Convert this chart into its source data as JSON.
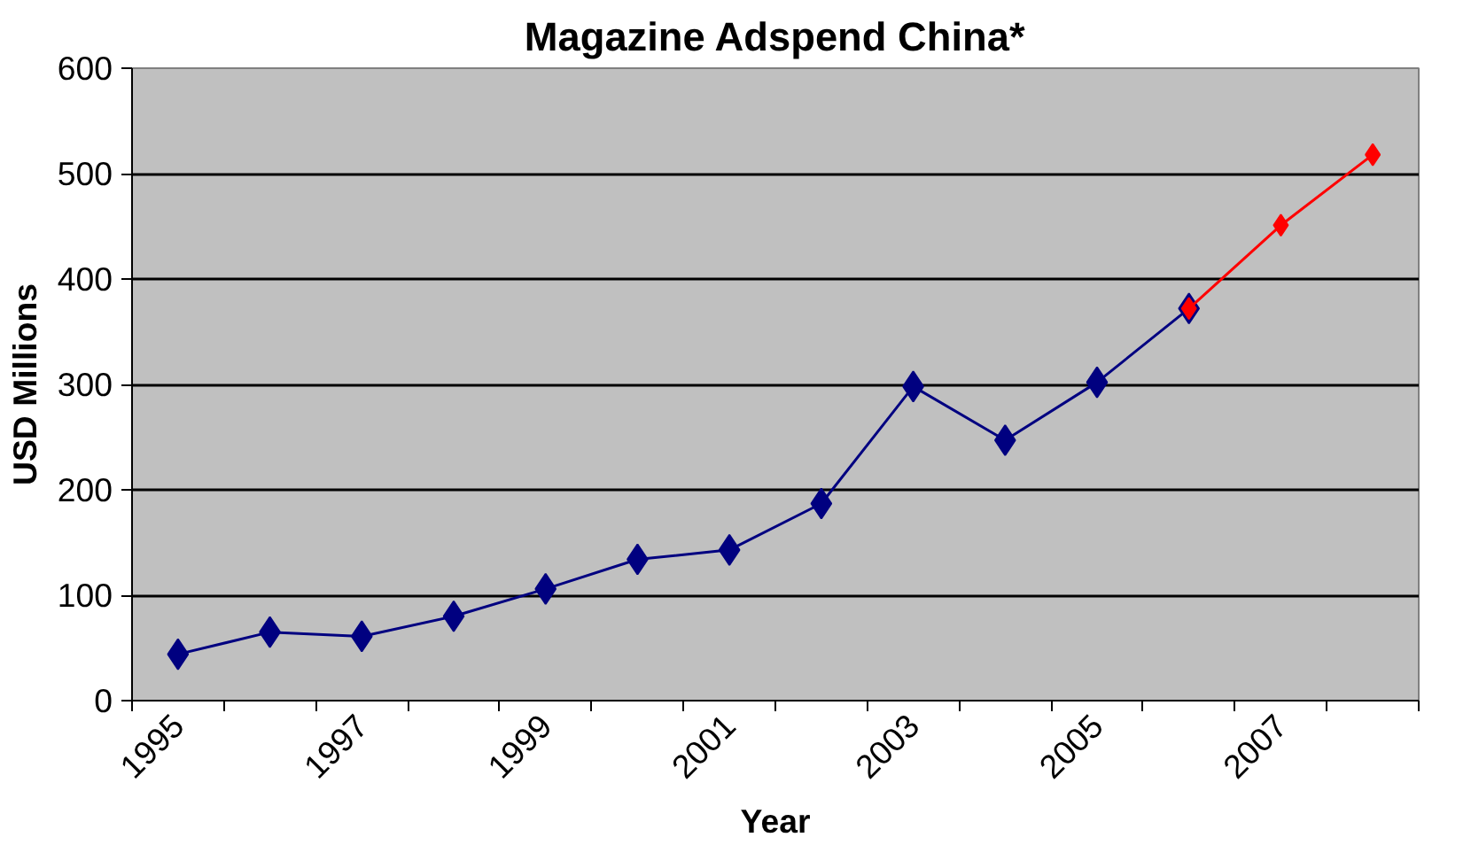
{
  "chart_data": {
    "type": "line",
    "title": "Magazine Adspend China*",
    "xlabel": "Year",
    "ylabel": "USD Millions",
    "categories": [
      "1995",
      null,
      "1997",
      null,
      "1999",
      null,
      "2001",
      null,
      "2003",
      null,
      "2005",
      null,
      "2007",
      null
    ],
    "series": [
      {
        "color": "#000080",
        "values": [
          44,
          65,
          61,
          80,
          106,
          134,
          143,
          187,
          298,
          247,
          302,
          372,
          null,
          null
        ]
      },
      {
        "color": "#ff0000",
        "values": [
          null,
          null,
          null,
          null,
          null,
          null,
          null,
          null,
          null,
          null,
          null,
          372,
          451,
          518
        ]
      }
    ],
    "ylim": [
      0,
      600
    ],
    "yticks": [
      0,
      100,
      200,
      300,
      400,
      500,
      600
    ],
    "grid": "y",
    "marker": "diamond",
    "line_style": "solid"
  }
}
